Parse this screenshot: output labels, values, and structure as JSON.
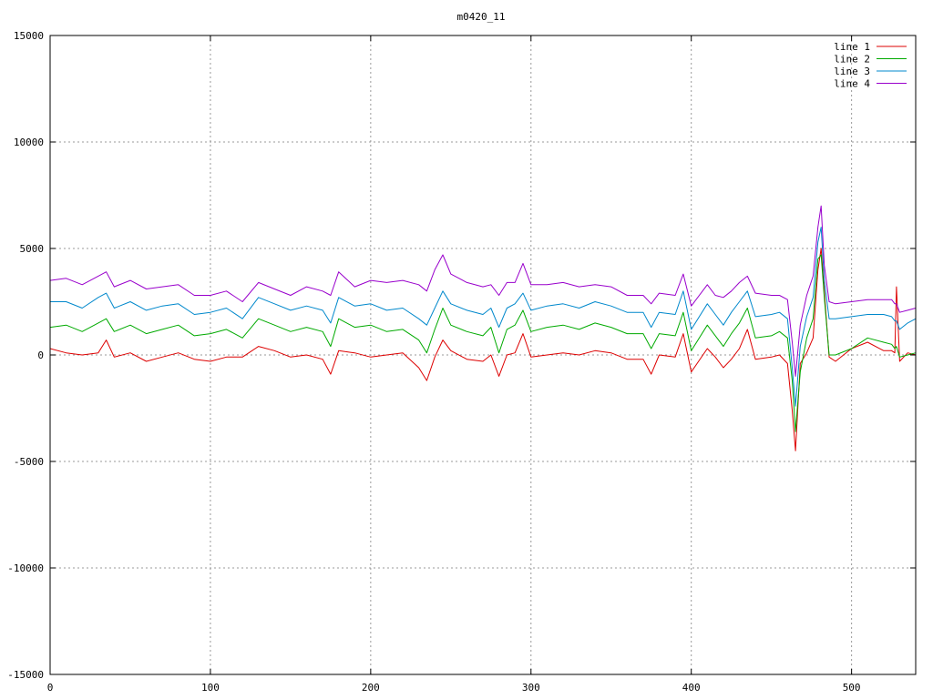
{
  "chart_data": {
    "type": "line",
    "title": "m0420_11",
    "xlabel": "",
    "ylabel": "",
    "xlim": [
      0,
      540
    ],
    "ylim": [
      -15000,
      15000
    ],
    "x_ticks": [
      "0",
      "100",
      "200",
      "300",
      "400",
      "500"
    ],
    "y_ticks": [
      "15000",
      "10000",
      "5000",
      "0",
      "-5000",
      "-10000",
      "-15000"
    ],
    "grid": true,
    "legend_position": "top-right",
    "series": [
      {
        "name": "line 1",
        "color": "#dd0000",
        "x": [
          0,
          10,
          20,
          30,
          35,
          40,
          50,
          60,
          70,
          80,
          90,
          100,
          110,
          120,
          130,
          140,
          150,
          160,
          170,
          175,
          180,
          190,
          200,
          210,
          220,
          230,
          235,
          240,
          245,
          250,
          260,
          270,
          275,
          280,
          285,
          290,
          295,
          300,
          310,
          320,
          330,
          340,
          350,
          360,
          370,
          375,
          380,
          390,
          395,
          400,
          410,
          415,
          420,
          425,
          430,
          435,
          440,
          450,
          455,
          460,
          463,
          465,
          468,
          472,
          476,
          479,
          481,
          483,
          486,
          490,
          500,
          510,
          520,
          525,
          527,
          528,
          530,
          535,
          540
        ],
        "y": [
          300,
          100,
          0,
          100,
          700,
          -100,
          100,
          -300,
          -100,
          100,
          -200,
          -300,
          -100,
          -100,
          400,
          200,
          -100,
          0,
          -200,
          -900,
          200,
          100,
          -100,
          0,
          100,
          -600,
          -1200,
          -100,
          700,
          200,
          -200,
          -300,
          0,
          -1000,
          0,
          100,
          1000,
          -100,
          0,
          100,
          0,
          200,
          100,
          -200,
          -200,
          -900,
          0,
          -100,
          1000,
          -800,
          300,
          -100,
          -600,
          -200,
          300,
          1200,
          -200,
          -100,
          0,
          -400,
          -2600,
          -4500,
          -400,
          100,
          800,
          4000,
          5000,
          3000,
          -100,
          -300,
          300,
          600,
          200,
          200,
          100,
          3200,
          -300,
          100,
          0
        ]
      },
      {
        "name": "line 2",
        "color": "#00aa00",
        "x": [
          0,
          10,
          20,
          30,
          35,
          40,
          50,
          60,
          70,
          80,
          90,
          100,
          110,
          120,
          130,
          140,
          150,
          160,
          170,
          175,
          180,
          190,
          200,
          210,
          220,
          230,
          235,
          240,
          245,
          250,
          260,
          270,
          275,
          280,
          285,
          290,
          295,
          300,
          310,
          320,
          330,
          340,
          350,
          360,
          370,
          375,
          380,
          390,
          395,
          400,
          410,
          415,
          420,
          425,
          430,
          435,
          440,
          450,
          455,
          460,
          463,
          465,
          468,
          472,
          476,
          479,
          481,
          483,
          486,
          490,
          500,
          510,
          520,
          525,
          527,
          528,
          530,
          535,
          540
        ],
        "y": [
          1300,
          1400,
          1100,
          1500,
          1700,
          1100,
          1400,
          1000,
          1200,
          1400,
          900,
          1000,
          1200,
          800,
          1700,
          1400,
          1100,
          1300,
          1100,
          400,
          1700,
          1300,
          1400,
          1100,
          1200,
          700,
          100,
          1200,
          2200,
          1400,
          1100,
          900,
          1300,
          100,
          1200,
          1400,
          2100,
          1100,
          1300,
          1400,
          1200,
          1500,
          1300,
          1000,
          1000,
          300,
          1000,
          900,
          2000,
          200,
          1400,
          900,
          400,
          1000,
          1500,
          2200,
          800,
          900,
          1100,
          800,
          -1200,
          -3600,
          -800,
          800,
          1700,
          4500,
          4700,
          2700,
          0,
          0,
          300,
          800,
          600,
          500,
          300,
          400,
          -100,
          0,
          100
        ]
      },
      {
        "name": "line 3",
        "color": "#0088cc",
        "x": [
          0,
          10,
          20,
          30,
          35,
          40,
          50,
          60,
          70,
          80,
          90,
          100,
          110,
          120,
          130,
          140,
          150,
          160,
          170,
          175,
          180,
          190,
          200,
          210,
          220,
          230,
          235,
          240,
          245,
          250,
          260,
          270,
          275,
          280,
          285,
          290,
          295,
          300,
          310,
          320,
          330,
          340,
          350,
          360,
          370,
          375,
          380,
          390,
          395,
          400,
          410,
          415,
          420,
          425,
          430,
          435,
          440,
          450,
          455,
          460,
          463,
          465,
          468,
          472,
          476,
          479,
          481,
          483,
          486,
          490,
          500,
          510,
          520,
          525,
          527,
          528,
          530,
          535,
          540
        ],
        "y": [
          2500,
          2500,
          2200,
          2700,
          2900,
          2200,
          2500,
          2100,
          2300,
          2400,
          1900,
          2000,
          2200,
          1700,
          2700,
          2400,
          2100,
          2300,
          2100,
          1500,
          2700,
          2300,
          2400,
          2100,
          2200,
          1700,
          1400,
          2200,
          3000,
          2400,
          2100,
          1900,
          2200,
          1300,
          2200,
          2400,
          2900,
          2100,
          2300,
          2400,
          2200,
          2500,
          2300,
          2000,
          2000,
          1300,
          2000,
          1900,
          3000,
          1200,
          2400,
          1900,
          1400,
          2000,
          2500,
          3000,
          1800,
          1900,
          2000,
          1700,
          -600,
          -2400,
          400,
          1800,
          2700,
          5300,
          6000,
          3500,
          1700,
          1700,
          1800,
          1900,
          1900,
          1800,
          1600,
          1600,
          1200,
          1500,
          1700
        ]
      },
      {
        "name": "line 4",
        "color": "#9900cc",
        "x": [
          0,
          10,
          20,
          30,
          35,
          40,
          50,
          60,
          70,
          80,
          90,
          100,
          110,
          120,
          130,
          140,
          150,
          160,
          170,
          175,
          180,
          190,
          200,
          210,
          220,
          230,
          235,
          240,
          245,
          250,
          260,
          270,
          275,
          280,
          285,
          290,
          295,
          300,
          310,
          320,
          330,
          340,
          350,
          360,
          370,
          375,
          380,
          390,
          395,
          400,
          410,
          415,
          420,
          425,
          430,
          435,
          440,
          450,
          455,
          460,
          463,
          465,
          468,
          472,
          476,
          479,
          481,
          483,
          486,
          490,
          500,
          510,
          520,
          525,
          527,
          528,
          530,
          535,
          540
        ],
        "y": [
          3500,
          3600,
          3300,
          3700,
          3900,
          3200,
          3500,
          3100,
          3200,
          3300,
          2800,
          2800,
          3000,
          2500,
          3400,
          3100,
          2800,
          3200,
          3000,
          2800,
          3900,
          3200,
          3500,
          3400,
          3500,
          3300,
          3000,
          4000,
          4700,
          3800,
          3400,
          3200,
          3300,
          2800,
          3400,
          3400,
          4300,
          3300,
          3300,
          3400,
          3200,
          3300,
          3200,
          2800,
          2800,
          2400,
          2900,
          2800,
          3800,
          2300,
          3300,
          2800,
          2700,
          3000,
          3400,
          3700,
          2900,
          2800,
          2800,
          2600,
          600,
          -1000,
          1400,
          2800,
          3700,
          6000,
          7000,
          4200,
          2500,
          2400,
          2500,
          2600,
          2600,
          2600,
          2400,
          2400,
          2000,
          2100,
          2200
        ]
      }
    ]
  }
}
